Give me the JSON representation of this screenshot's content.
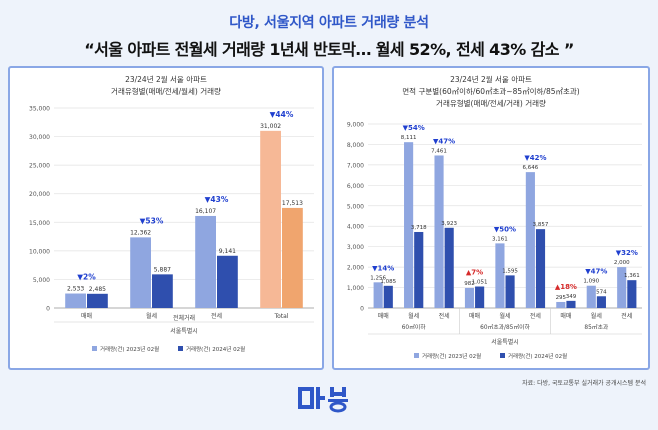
{
  "header": {
    "subtitle": "다방, 서울지역 아파트 거래량 분석",
    "headline": "“서울 아파트 전월세 거래량 1년새 반토막… 월세 52%, 전세 43% 감소 ”"
  },
  "source": "자료: 다방, 국토교통부 실거래가 공개시스템 분석",
  "colors": {
    "series_2023": "#8fa6e0",
    "series_2024": "#2f4fae",
    "total_2023": "#f6b896",
    "total_2024": "#f0a56e",
    "decrease": "#1f3fcf",
    "increase": "#d62a2a",
    "panel_border": "#8aa7e6"
  },
  "chart_data": [
    {
      "type": "bar",
      "title": "23/24년 2월 서울 아파트",
      "subtitle": "거래유형별(매매/전세/월세) 거래량",
      "categories": [
        "매매",
        "월세",
        "전세",
        "Total"
      ],
      "group_label": "전체거래",
      "region_label": "서울특별시",
      "ylim": [
        0,
        35000
      ],
      "yticks": [
        "0",
        "5,000",
        "10,000",
        "15,000",
        "20,000",
        "25,000",
        "30,000",
        "35,000"
      ],
      "series": [
        {
          "name": "거래량(건) 2023년 02월",
          "values": [
            2533,
            12362,
            16107,
            31002
          ],
          "labels": [
            "2,533",
            "12,362",
            "16,107",
            "31,002"
          ]
        },
        {
          "name": "거래량(건) 2024년 02월",
          "values": [
            2485,
            5887,
            9141,
            17513
          ],
          "labels": [
            "2,485",
            "5,887",
            "9,141",
            "17,513"
          ]
        }
      ],
      "changes": [
        {
          "text": "▼2%",
          "dir": "down"
        },
        {
          "text": "▼53%",
          "dir": "down"
        },
        {
          "text": "▼43%",
          "dir": "down"
        },
        {
          "text": "▼44%",
          "dir": "down"
        }
      ],
      "grid": true,
      "legend": "bottom"
    },
    {
      "type": "bar",
      "title": "23/24년 2월 서울 아파트",
      "subtitle": "면적 구분별(60㎡이하/60㎡초과~85㎡이하/85㎡초과)",
      "subtitle2": "거래유형별(매매/전세/거래) 거래량",
      "categories": [
        "매매",
        "월세",
        "전세",
        "매매",
        "월세",
        "전세",
        "매매",
        "월세",
        "전세"
      ],
      "groups": [
        "60㎡이하",
        "60㎡초과/85㎡이하",
        "85㎡초과"
      ],
      "region_label": "서울특별시",
      "ylim": [
        0,
        9000
      ],
      "yticks": [
        "0",
        "1,000",
        "2,000",
        "3,000",
        "4,000",
        "5,000",
        "6,000",
        "7,000",
        "8,000",
        "9,000"
      ],
      "series": [
        {
          "name": "거래량(건) 2023년 02월",
          "values": [
            1256,
            8111,
            7461,
            982,
            3161,
            6646,
            295,
            1090,
            2000
          ],
          "labels": [
            "1,256",
            "8,111",
            "7,461",
            "982",
            "3,161",
            "6,646",
            "295",
            "1,090",
            "2,000"
          ]
        },
        {
          "name": "거래량(건) 2024년 02월",
          "values": [
            1085,
            3718,
            3923,
            1051,
            1595,
            3857,
            349,
            574,
            1361
          ],
          "labels": [
            "1,085",
            "3,718",
            "3,923",
            "1,051",
            "1,595",
            "3,857",
            "349",
            "574",
            "1,361"
          ]
        }
      ],
      "changes": [
        {
          "text": "▼14%",
          "dir": "down"
        },
        {
          "text": "▼54%",
          "dir": "down"
        },
        {
          "text": "▼47%",
          "dir": "down"
        },
        {
          "text": "▲7%",
          "dir": "up"
        },
        {
          "text": "▼50%",
          "dir": "down"
        },
        {
          "text": "▼42%",
          "dir": "down"
        },
        {
          "text": "▲18%",
          "dir": "up"
        },
        {
          "text": "▼47%",
          "dir": "down"
        },
        {
          "text": "▼32%",
          "dir": "down"
        }
      ],
      "grid": true,
      "legend": "bottom"
    }
  ]
}
